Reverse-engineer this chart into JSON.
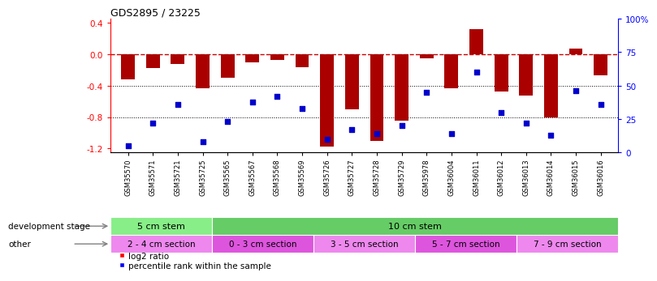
{
  "title": "GDS2895 / 23225",
  "samples": [
    "GSM35570",
    "GSM35571",
    "GSM35721",
    "GSM35725",
    "GSM35565",
    "GSM35567",
    "GSM35568",
    "GSM35569",
    "GSM35726",
    "GSM35727",
    "GSM35728",
    "GSM35729",
    "GSM35978",
    "GSM36004",
    "GSM36011",
    "GSM36012",
    "GSM36013",
    "GSM36014",
    "GSM36015",
    "GSM36016"
  ],
  "log2_ratio": [
    -0.32,
    -0.18,
    -0.12,
    -0.43,
    -0.3,
    -0.1,
    -0.07,
    -0.17,
    -1.18,
    -0.7,
    -1.1,
    -0.85,
    -0.05,
    -0.43,
    0.32,
    -0.48,
    -0.53,
    -0.8,
    0.07,
    -0.27
  ],
  "percentile_rank": [
    5,
    22,
    36,
    8,
    23,
    38,
    42,
    33,
    10,
    17,
    14,
    20,
    45,
    14,
    60,
    30,
    22,
    13,
    46,
    36
  ],
  "bar_color": "#aa0000",
  "dot_color": "#0000cc",
  "dashed_color": "#cc0000",
  "ylim_left": [
    -1.25,
    0.45
  ],
  "ylim_right": [
    0,
    100
  ],
  "yticks_left": [
    0.4,
    0.0,
    -0.4,
    -0.8,
    -1.2
  ],
  "yticks_right": [
    0,
    25,
    50,
    75,
    100
  ],
  "development_stage_groups": [
    {
      "label": "5 cm stem",
      "start": 0,
      "end": 4,
      "color": "#88ee88"
    },
    {
      "label": "10 cm stem",
      "start": 4,
      "end": 20,
      "color": "#66cc66"
    }
  ],
  "other_groups": [
    {
      "label": "2 - 4 cm section",
      "start": 0,
      "end": 4,
      "color": "#ee88ee"
    },
    {
      "label": "0 - 3 cm section",
      "start": 4,
      "end": 8,
      "color": "#dd55dd"
    },
    {
      "label": "3 - 5 cm section",
      "start": 8,
      "end": 12,
      "color": "#ee88ee"
    },
    {
      "label": "5 - 7 cm section",
      "start": 12,
      "end": 16,
      "color": "#dd55dd"
    },
    {
      "label": "7 - 9 cm section",
      "start": 16,
      "end": 20,
      "color": "#ee88ee"
    }
  ],
  "dev_stage_label": "development stage",
  "other_label": "other",
  "legend_log2": "log2 ratio",
  "legend_pct": "percentile rank within the sample",
  "bg_color": "#ffffff",
  "bar_width": 0.55
}
